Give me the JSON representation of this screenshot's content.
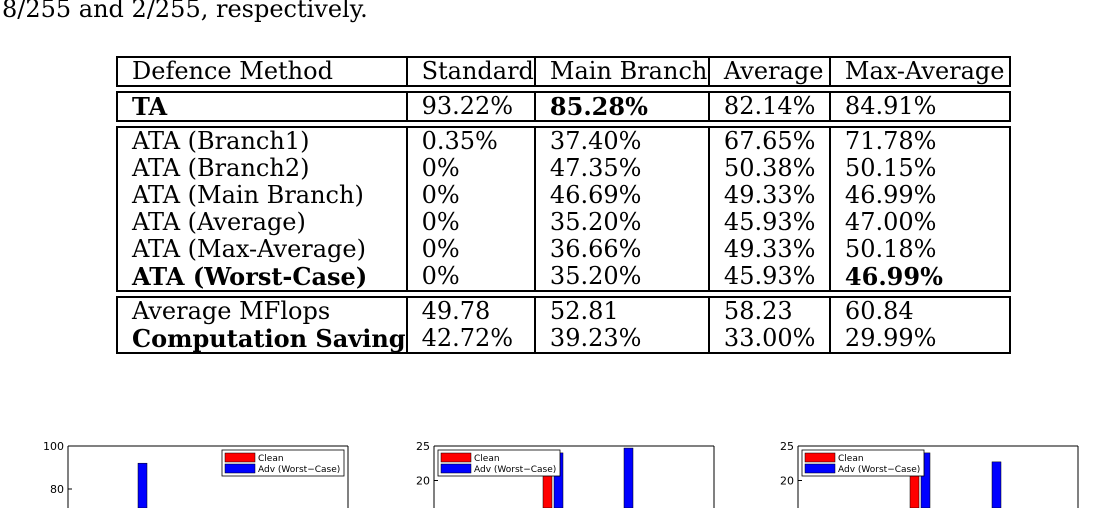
{
  "caption_tail": "8/255 and 2/255, respectively.",
  "table": {
    "header": [
      "Defence Method",
      "Standard",
      "Main Branch",
      "Average",
      "Max-Average"
    ],
    "group_ta": [
      {
        "cells": [
          "TA",
          "93.22%",
          "85.28%",
          "82.14%",
          "84.91%"
        ],
        "bold": [
          0,
          2
        ]
      }
    ],
    "group_ata": [
      {
        "cells": [
          "ATA (Branch1)",
          "0.35%",
          "37.40%",
          "67.65%",
          "71.78%"
        ],
        "bold": []
      },
      {
        "cells": [
          "ATA (Branch2)",
          "0%",
          "47.35%",
          "50.38%",
          "50.15%"
        ],
        "bold": []
      },
      {
        "cells": [
          "ATA (Main Branch)",
          "0%",
          "46.69%",
          "49.33%",
          "46.99%"
        ],
        "bold": []
      },
      {
        "cells": [
          "ATA (Average)",
          "0%",
          "35.20%",
          "45.93%",
          "47.00%"
        ],
        "bold": []
      },
      {
        "cells": [
          "ATA (Max-Average)",
          "0%",
          "36.66%",
          "49.33%",
          "50.18%"
        ],
        "bold": []
      },
      {
        "cells": [
          "ATA (Worst-Case)",
          "0%",
          "35.20%",
          "45.93%",
          "46.99%"
        ],
        "bold": [
          0,
          4
        ]
      }
    ],
    "group_cost": [
      {
        "cells": [
          "Average MFlops",
          "49.78",
          "52.81",
          "58.23",
          "60.84"
        ],
        "bold": []
      },
      {
        "cells": [
          "Computation Saving",
          "42.72%",
          "39.23%",
          "33.00%",
          "29.99%"
        ],
        "bold": [
          0
        ]
      }
    ]
  },
  "colors": {
    "clean": "#ff0000",
    "adv": "#0000ff"
  },
  "chart_data": [
    {
      "type": "bar",
      "ylim_visible": [
        75,
        100
      ],
      "yticks": [
        "100",
        "80"
      ],
      "ytick_values": [
        100,
        80
      ],
      "legend_position": "top-right",
      "series": [
        {
          "name": "Clean",
          "values": []
        },
        {
          "name": "Adv (Worst−Case)",
          "values": [
            92
          ]
        }
      ],
      "bars": [
        {
          "series": 1,
          "value": 92
        }
      ]
    },
    {
      "type": "bar",
      "ylim_visible": [
        18,
        25
      ],
      "yticks": [
        "25",
        "20"
      ],
      "ytick_values": [
        25,
        20
      ],
      "legend_position": "top-left",
      "series": [
        {
          "name": "Clean",
          "values": [
            21.5
          ]
        },
        {
          "name": "Adv (Worst−Case)",
          "values": [
            24,
            24.7
          ]
        }
      ],
      "bars": [
        {
          "series": 0,
          "value": 21.5
        },
        {
          "series": 1,
          "value": 24
        },
        {
          "series": 1,
          "value": 24.7
        }
      ]
    },
    {
      "type": "bar",
      "ylim_visible": [
        18,
        25
      ],
      "yticks": [
        "25",
        "20"
      ],
      "ytick_values": [
        25,
        20
      ],
      "legend_position": "top-left",
      "series": [
        {
          "name": "Clean",
          "values": [
            22.6
          ]
        },
        {
          "name": "Adv (Worst−Case)",
          "values": [
            24,
            22.7
          ]
        }
      ],
      "bars": [
        {
          "series": 0,
          "value": 22.6
        },
        {
          "series": 1,
          "value": 24
        },
        {
          "series": 1,
          "value": 22.7
        }
      ]
    }
  ]
}
